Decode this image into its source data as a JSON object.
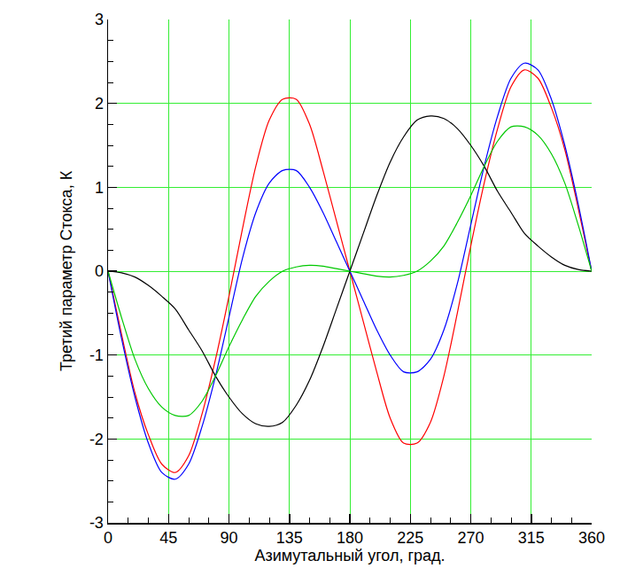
{
  "chart_data": {
    "type": "line",
    "x_label": "Азимутальный угол, град.",
    "y_label": "Третий параметр Стокса, К",
    "x": [
      0,
      10,
      20,
      30,
      40,
      50,
      60,
      70,
      80,
      90,
      100,
      110,
      120,
      130,
      140,
      150,
      160,
      170,
      180,
      190,
      200,
      210,
      220,
      230,
      240,
      250,
      260,
      270,
      280,
      290,
      300,
      310,
      320,
      330,
      340,
      350,
      360
    ],
    "series": [
      {
        "color": "#ff0000",
        "values": [
          0,
          -0.75,
          -1.45,
          -1.95,
          -2.3,
          -2.4,
          -2.2,
          -1.7,
          -1.05,
          -0.3,
          0.5,
          1.25,
          1.8,
          2.05,
          2.05,
          1.75,
          1.2,
          0.6,
          0,
          -0.6,
          -1.2,
          -1.75,
          -2.05,
          -2.05,
          -1.8,
          -1.25,
          -0.5,
          0.3,
          1.05,
          1.7,
          2.2,
          2.4,
          2.3,
          1.95,
          1.45,
          0.75,
          0
        ]
      },
      {
        "color": "#0000ff",
        "values": [
          0,
          -0.8,
          -1.5,
          -2.05,
          -2.4,
          -2.48,
          -2.3,
          -1.85,
          -1.25,
          -0.55,
          0.15,
          0.7,
          1.05,
          1.2,
          1.2,
          1.0,
          0.7,
          0.35,
          0,
          -0.35,
          -0.7,
          -1.0,
          -1.2,
          -1.2,
          -1.05,
          -0.7,
          -0.15,
          0.55,
          1.25,
          1.85,
          2.3,
          2.48,
          2.4,
          2.05,
          1.5,
          0.8,
          0
        ]
      },
      {
        "color": "#000000",
        "values": [
          0,
          -0.02,
          -0.07,
          -0.17,
          -0.3,
          -0.45,
          -0.7,
          -0.95,
          -1.25,
          -1.5,
          -1.7,
          -1.82,
          -1.85,
          -1.8,
          -1.6,
          -1.3,
          -0.9,
          -0.45,
          0,
          0.45,
          0.9,
          1.3,
          1.6,
          1.8,
          1.85,
          1.82,
          1.7,
          1.5,
          1.25,
          0.95,
          0.7,
          0.45,
          0.3,
          0.17,
          0.07,
          0.02,
          0
        ]
      },
      {
        "color": "#00c800",
        "values": [
          0,
          -0.55,
          -1.05,
          -1.4,
          -1.62,
          -1.72,
          -1.72,
          -1.55,
          -1.25,
          -0.9,
          -0.58,
          -0.3,
          -0.12,
          0,
          0.05,
          0.07,
          0.06,
          0.03,
          0,
          -0.03,
          -0.06,
          -0.07,
          -0.05,
          0,
          0.12,
          0.3,
          0.58,
          0.9,
          1.25,
          1.55,
          1.72,
          1.72,
          1.62,
          1.4,
          1.05,
          0.55,
          0
        ]
      }
    ],
    "xlim": [
      0,
      360
    ],
    "xticks": [
      0,
      45,
      90,
      135,
      180,
      225,
      270,
      315,
      360
    ],
    "ylim": [
      -3,
      3
    ],
    "yticks": [
      -3,
      -2,
      -1,
      0,
      1,
      2,
      3
    ],
    "grid": true
  }
}
